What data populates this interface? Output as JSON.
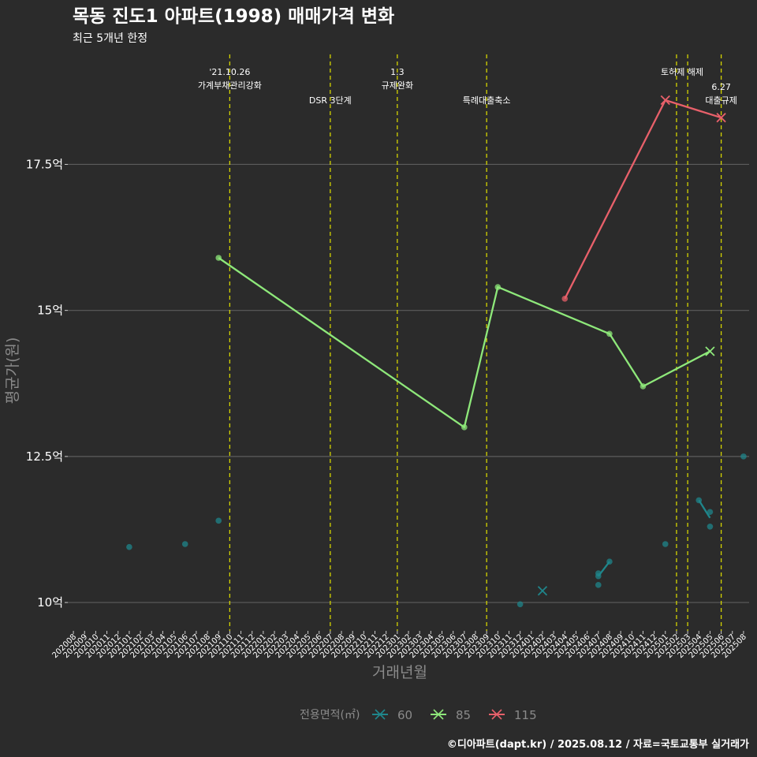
{
  "chart_data": {
    "type": "line",
    "title": "목동 진도1 아파트(1998) 매매가격 변화",
    "subtitle": "최근 5개년 한정",
    "xlabel": "거래년월",
    "ylabel": "평균가(원)",
    "caption": "©디아파트(dapt.kr) / 2025.08.12 / 자료=국토교통부 실거래가",
    "x_ticks": [
      "202008",
      "202009",
      "202010",
      "202011",
      "202012",
      "202101",
      "202102",
      "202103",
      "202104",
      "202105",
      "202106",
      "202107",
      "202108",
      "202109",
      "202110",
      "202111",
      "202112",
      "202201",
      "202202",
      "202203",
      "202204",
      "202205",
      "202206",
      "202207",
      "202208",
      "202209",
      "202210",
      "202211",
      "202212",
      "202301",
      "202302",
      "202303",
      "202304",
      "202305",
      "202306",
      "202307",
      "202308",
      "202309",
      "202310",
      "202311",
      "202312",
      "202401",
      "202402",
      "202403",
      "202404",
      "202405",
      "202406",
      "202407",
      "202408",
      "202409",
      "202410",
      "202411",
      "202412",
      "202501",
      "202502",
      "202503",
      "202504",
      "202505",
      "202506",
      "202507",
      "202508"
    ],
    "y_ticks": [
      {
        "value": 10,
        "label": "10억"
      },
      {
        "value": 12.5,
        "label": "12.5억"
      },
      {
        "value": 15,
        "label": "15억"
      },
      {
        "value": 17.5,
        "label": "17.5억"
      }
    ],
    "ylim": [
      9.65,
      19.45
    ],
    "grid": true,
    "legend": {
      "title": "전용면적(㎡)",
      "placement": "bottom",
      "entries": [
        {
          "name": "60",
          "color": "#1f868b"
        },
        {
          "name": "85",
          "color": "#8ee87a"
        },
        {
          "name": "115",
          "color": "#e8606a"
        }
      ]
    },
    "series": [
      {
        "name": "60",
        "color": "#1f868b",
        "points": [
          {
            "x": "202101",
            "y": 10.95
          },
          {
            "x": "202106",
            "y": 11.0
          },
          {
            "x": "202109",
            "y": 11.4
          },
          {
            "x": "202312",
            "y": 9.97
          },
          {
            "x": "202402",
            "y": 10.2,
            "marker": "x"
          },
          {
            "x": "202407",
            "y": 10.3
          },
          {
            "x": "202407",
            "y": 10.45
          },
          {
            "x": "202407",
            "y": 10.5
          },
          {
            "x": "202408",
            "y": 10.7
          },
          {
            "x": "202501",
            "y": 11.0
          },
          {
            "x": "202504",
            "y": 11.75
          },
          {
            "x": "202505",
            "y": 11.55
          },
          {
            "x": "202505",
            "y": 11.3
          },
          {
            "x": "202508",
            "y": 12.5
          }
        ],
        "lines": [
          [
            {
              "x": "202407",
              "y": 10.45
            },
            {
              "x": "202408",
              "y": 10.7
            }
          ],
          [
            {
              "x": "202504",
              "y": 11.75
            },
            {
              "x": "202505",
              "y": 11.45
            }
          ]
        ]
      },
      {
        "name": "85",
        "color": "#8ee87a",
        "points": [
          {
            "x": "202109",
            "y": 15.9
          },
          {
            "x": "202307",
            "y": 13.0
          },
          {
            "x": "202310",
            "y": 15.4
          },
          {
            "x": "202408",
            "y": 14.6
          },
          {
            "x": "202411",
            "y": 13.7
          },
          {
            "x": "202505",
            "y": 14.3,
            "marker": "x"
          }
        ],
        "lines": [
          [
            {
              "x": "202109",
              "y": 15.9
            },
            {
              "x": "202307",
              "y": 13.0
            },
            {
              "x": "202310",
              "y": 15.4
            },
            {
              "x": "202408",
              "y": 14.6
            },
            {
              "x": "202411",
              "y": 13.7
            },
            {
              "x": "202505",
              "y": 14.3
            }
          ]
        ]
      },
      {
        "name": "115",
        "color": "#e8606a",
        "points": [
          {
            "x": "202404",
            "y": 15.2
          },
          {
            "x": "202501",
            "y": 18.6,
            "marker": "x"
          },
          {
            "x": "202506",
            "y": 18.3,
            "marker": "x"
          }
        ],
        "lines": [
          [
            {
              "x": "202404",
              "y": 15.2
            },
            {
              "x": "202501",
              "y": 18.6
            },
            {
              "x": "202506",
              "y": 18.3
            }
          ]
        ]
      }
    ],
    "events": [
      {
        "x": 14,
        "lines": [
          "'21.10.26",
          "가계부채관리강화"
        ],
        "row": 0
      },
      {
        "x": 23,
        "lines": [
          "DSR 3단계"
        ],
        "row": 1
      },
      {
        "x": 29,
        "lines": [
          "1.3",
          "규제완화"
        ],
        "row": 0
      },
      {
        "x": 37,
        "lines": [
          "특례대출축소"
        ],
        "row": 1
      },
      {
        "x": 54,
        "lines": [
          "토허제 해제"
        ],
        "row": 0,
        "shared_label": true
      },
      {
        "x": 55,
        "lines": [],
        "row": 0
      },
      {
        "x": 58,
        "lines": [
          "6.27",
          "대출규제"
        ],
        "row": 1
      }
    ]
  }
}
